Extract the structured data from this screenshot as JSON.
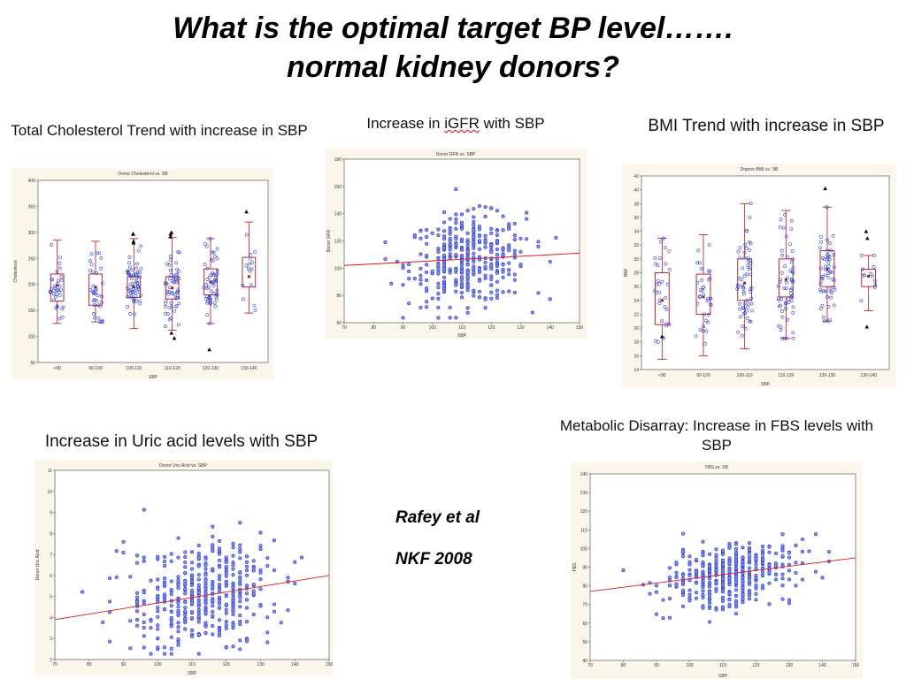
{
  "slide": {
    "title_line1": "What is the optimal target BP level…….",
    "title_line2": "normal kidney donors?"
  },
  "citation": {
    "line1": "Rafey et al",
    "line2": "NKF 2008"
  },
  "panels": {
    "cholesterol": "Total Cholesterol Trend  with increase in SBP",
    "igfr_prefix": "Increase in ",
    "igfr_word": "iGFR",
    "igfr_suffix": " with SBP",
    "bmi": "BMI Trend  with increase in SBP",
    "uric": "Increase in Uric acid levels with SBP",
    "fbs_line1": "Metabolic Disarray: Increase in FBS levels with",
    "fbs_line2": "SBP"
  },
  "colors": {
    "points": "#2f3fd6",
    "box": "#b01515",
    "trend": "#e01515",
    "plot_bg": "#ffffff",
    "panel_bg": "#fbf7ea"
  },
  "chart_data": [
    {
      "id": "cholesterol",
      "type": "box",
      "title": "Donor Cholesterol vs. SB",
      "xlabel": "SBP",
      "ylabel": "Cholesterol",
      "categories": [
        "<90",
        "90-100",
        "100-110",
        "110-120",
        "120-130",
        "130-140"
      ],
      "ylim": [
        50,
        400
      ],
      "yticks": [
        50,
        100,
        150,
        200,
        250,
        300,
        350,
        400
      ],
      "q1": [
        168,
        160,
        175,
        172,
        180,
        195
      ],
      "median": [
        198,
        195,
        195,
        193,
        205,
        215
      ],
      "q3": [
        220,
        220,
        215,
        215,
        230,
        252
      ],
      "whisker_low": [
        125,
        128,
        115,
        112,
        125,
        145
      ],
      "whisker_high": [
        285,
        283,
        288,
        290,
        288,
        320
      ],
      "n_points": [
        35,
        35,
        60,
        55,
        55,
        15
      ],
      "outliers": [
        [],
        [],
        [
          297,
          297,
          283,
          280
        ],
        [
          297,
          292,
          300,
          97,
          107
        ],
        [
          75
        ],
        [
          340
        ]
      ]
    },
    {
      "id": "igfr",
      "type": "scatter",
      "title": "Donor GFR vs. SBP",
      "xlabel": "SBP",
      "ylabel": "Donor GFR",
      "xlim": [
        70,
        150
      ],
      "ylim": [
        60,
        180
      ],
      "xticks": [
        70,
        80,
        90,
        100,
        110,
        120,
        130,
        140,
        150
      ],
      "yticks": [
        60,
        80,
        100,
        120,
        140,
        160,
        180
      ],
      "trend": {
        "x": [
          70,
          150
        ],
        "y": [
          102,
          111
        ]
      },
      "x_center": 112,
      "x_spread": 10,
      "y_center": 106,
      "y_spread": 16,
      "n_points": 380
    },
    {
      "id": "bmi",
      "type": "box",
      "title": "Dopnor BMI vs. SB",
      "xlabel": "SBP",
      "ylabel": "BMI",
      "categories": [
        "<90",
        "90-100",
        "100-110",
        "110-120",
        "120-130",
        "130-140"
      ],
      "ylim": [
        14,
        42
      ],
      "yticks": [
        14,
        16,
        18,
        20,
        22,
        24,
        26,
        28,
        30,
        32,
        34,
        36,
        38,
        40,
        42
      ],
      "q1": [
        20.5,
        22,
        24,
        24.5,
        26,
        26
      ],
      "median": [
        24,
        24.5,
        26.5,
        27,
        28.5,
        27.5
      ],
      "q3": [
        28,
        27.8,
        30,
        30,
        31.2,
        28.5
      ],
      "whisker_low": [
        15.5,
        16,
        17,
        18.5,
        21,
        22.5
      ],
      "whisker_high": [
        33,
        33.5,
        38,
        37,
        37.5,
        30.5
      ],
      "n_points": [
        30,
        35,
        60,
        60,
        55,
        12
      ],
      "outliers": [
        [
          18.8
        ],
        [],
        [],
        [],
        [
          40.2
        ],
        [
          34,
          33,
          20.2
        ]
      ]
    },
    {
      "id": "uric",
      "type": "scatter",
      "title": "Donor Uric Acid vs. SBP",
      "xlabel": "SBP",
      "ylabel": "Donor Uric Acid",
      "xlim": [
        70,
        150
      ],
      "ylim": [
        2,
        11
      ],
      "xticks": [
        70,
        80,
        90,
        100,
        110,
        120,
        130,
        140,
        150
      ],
      "yticks": [
        2,
        3,
        4,
        5,
        6,
        7,
        8,
        9,
        10,
        11
      ],
      "trend": {
        "x": [
          70,
          150
        ],
        "y": [
          3.9,
          6.0
        ]
      },
      "x_center": 113,
      "x_spread": 11,
      "y_center": 5,
      "y_spread": 1.3,
      "n_points": 420
    },
    {
      "id": "fbs",
      "type": "scatter",
      "title": "FBS vs. SB",
      "xlabel": "SBP",
      "ylabel": "FBS",
      "xlim": [
        70,
        150
      ],
      "ylim": [
        40,
        140
      ],
      "xticks": [
        70,
        80,
        90,
        100,
        110,
        120,
        130,
        140,
        150
      ],
      "yticks": [
        40,
        50,
        60,
        70,
        80,
        90,
        100,
        110,
        120,
        130,
        140
      ],
      "trend": {
        "x": [
          70,
          150
        ],
        "y": [
          77,
          95
        ]
      },
      "x_center": 112,
      "x_spread": 10,
      "y_center": 86,
      "y_spread": 8,
      "n_points": 420
    }
  ]
}
